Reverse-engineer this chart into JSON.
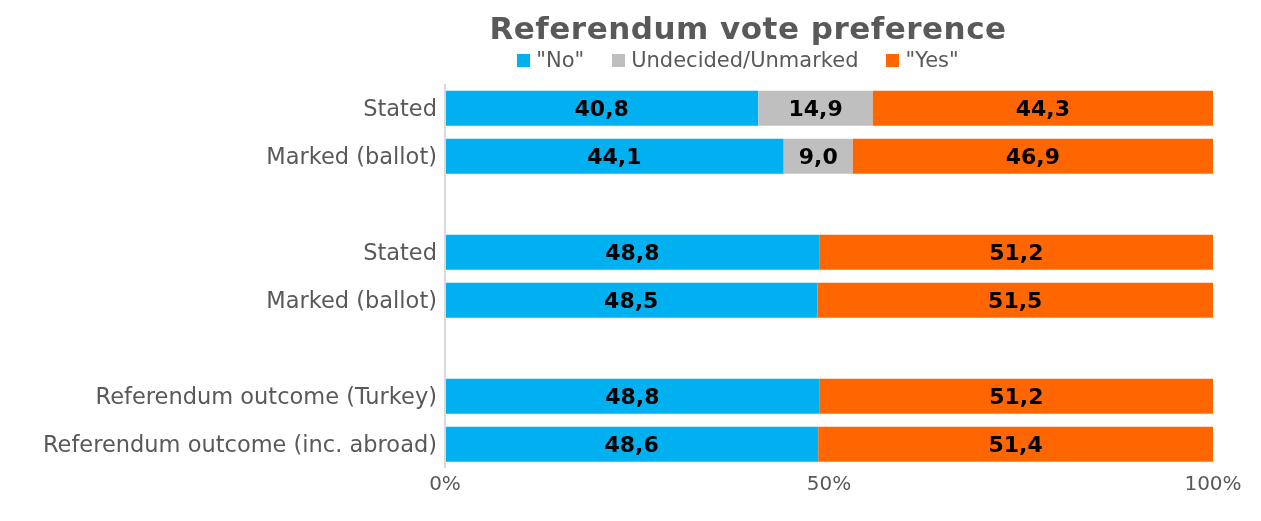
{
  "chart_data": {
    "type": "bar",
    "title": "Referendum vote preference",
    "orientation": "horizontal",
    "stacked": true,
    "categories": [
      "Stated",
      "Marked (ballot)",
      null,
      "Stated",
      "Marked (ballot)",
      null,
      "Referendum outcome (Turkey)",
      "Referendum outcome (inc. abroad)"
    ],
    "series": [
      {
        "name": "\"No\"",
        "color": "#00b0f0",
        "values": [
          40.8,
          44.1,
          null,
          48.8,
          48.5,
          null,
          48.8,
          48.6
        ],
        "value_labels": [
          "40,8",
          "44,1",
          null,
          "48,8",
          "48,5",
          null,
          "48,8",
          "48,6"
        ]
      },
      {
        "name": "Undecided/Unmarked",
        "color": "#bfbfbf",
        "values": [
          14.9,
          9.0,
          null,
          null,
          null,
          null,
          null,
          null
        ],
        "value_labels": [
          "14,9",
          "9,0",
          null,
          null,
          null,
          null,
          null,
          null
        ]
      },
      {
        "name": "\"Yes\"",
        "color": "#ff6600",
        "values": [
          44.3,
          46.9,
          null,
          51.2,
          51.5,
          null,
          51.2,
          51.4
        ],
        "value_labels": [
          "44,3",
          "46,9",
          null,
          "51,2",
          "51,5",
          null,
          "51,2",
          "51,4"
        ]
      }
    ],
    "xlim": [
      0,
      100
    ],
    "xticks": [
      {
        "value": 0,
        "label": "0%"
      },
      {
        "value": 50,
        "label": "50%"
      },
      {
        "value": 100,
        "label": "100%"
      }
    ],
    "grid": false,
    "legend": "top"
  }
}
